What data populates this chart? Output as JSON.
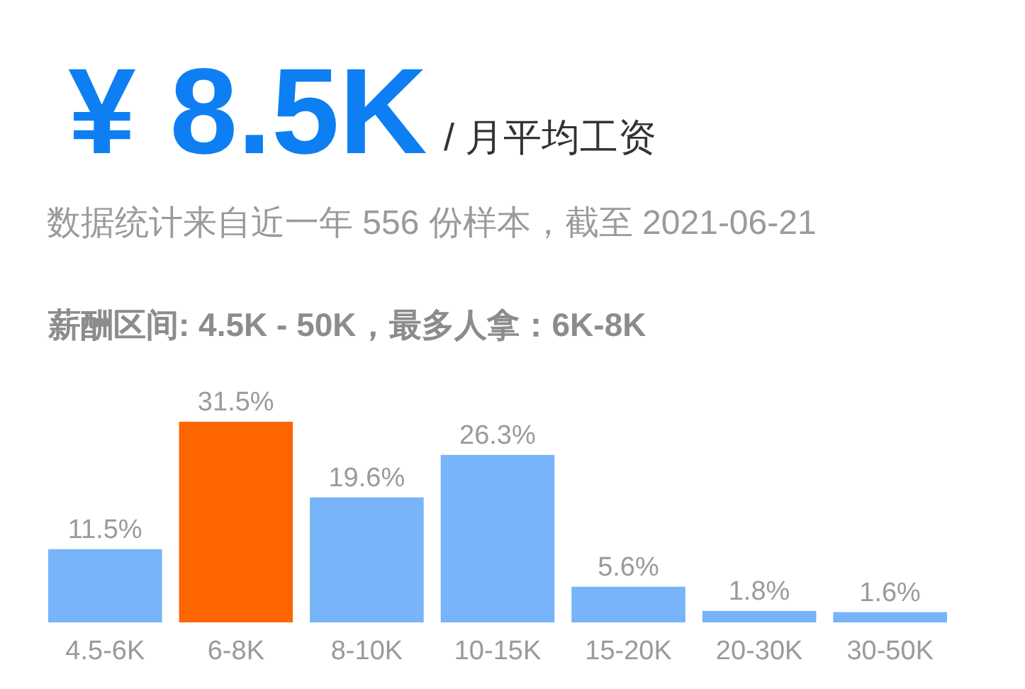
{
  "chart_data": {
    "type": "bar",
    "title": "¥ 8.5K",
    "subtitle": "数据统计来自近一年 556 份样本，截至 2021-06-21",
    "annotations": [
      "/ 月平均工资",
      "薪酬区间: 4.5K - 50K，最多人拿：6K-8K"
    ],
    "categories": [
      "4.5-6K",
      "6-8K",
      "8-10K",
      "10-15K",
      "15-20K",
      "20-30K",
      "30-50K"
    ],
    "values": [
      11.5,
      31.5,
      19.6,
      26.3,
      5.6,
      1.8,
      1.6
    ],
    "colors": [
      "#77b4f9",
      "#fe6600",
      "#77b4f9",
      "#77b4f9",
      "#77b4f9",
      "#77b4f9",
      "#77b4f9"
    ],
    "value_labels": [
      "11.5%",
      "31.5%",
      "19.6%",
      "26.3%",
      "5.6%",
      "1.8%",
      "1.6%"
    ],
    "tick_labels": "x"
  }
}
